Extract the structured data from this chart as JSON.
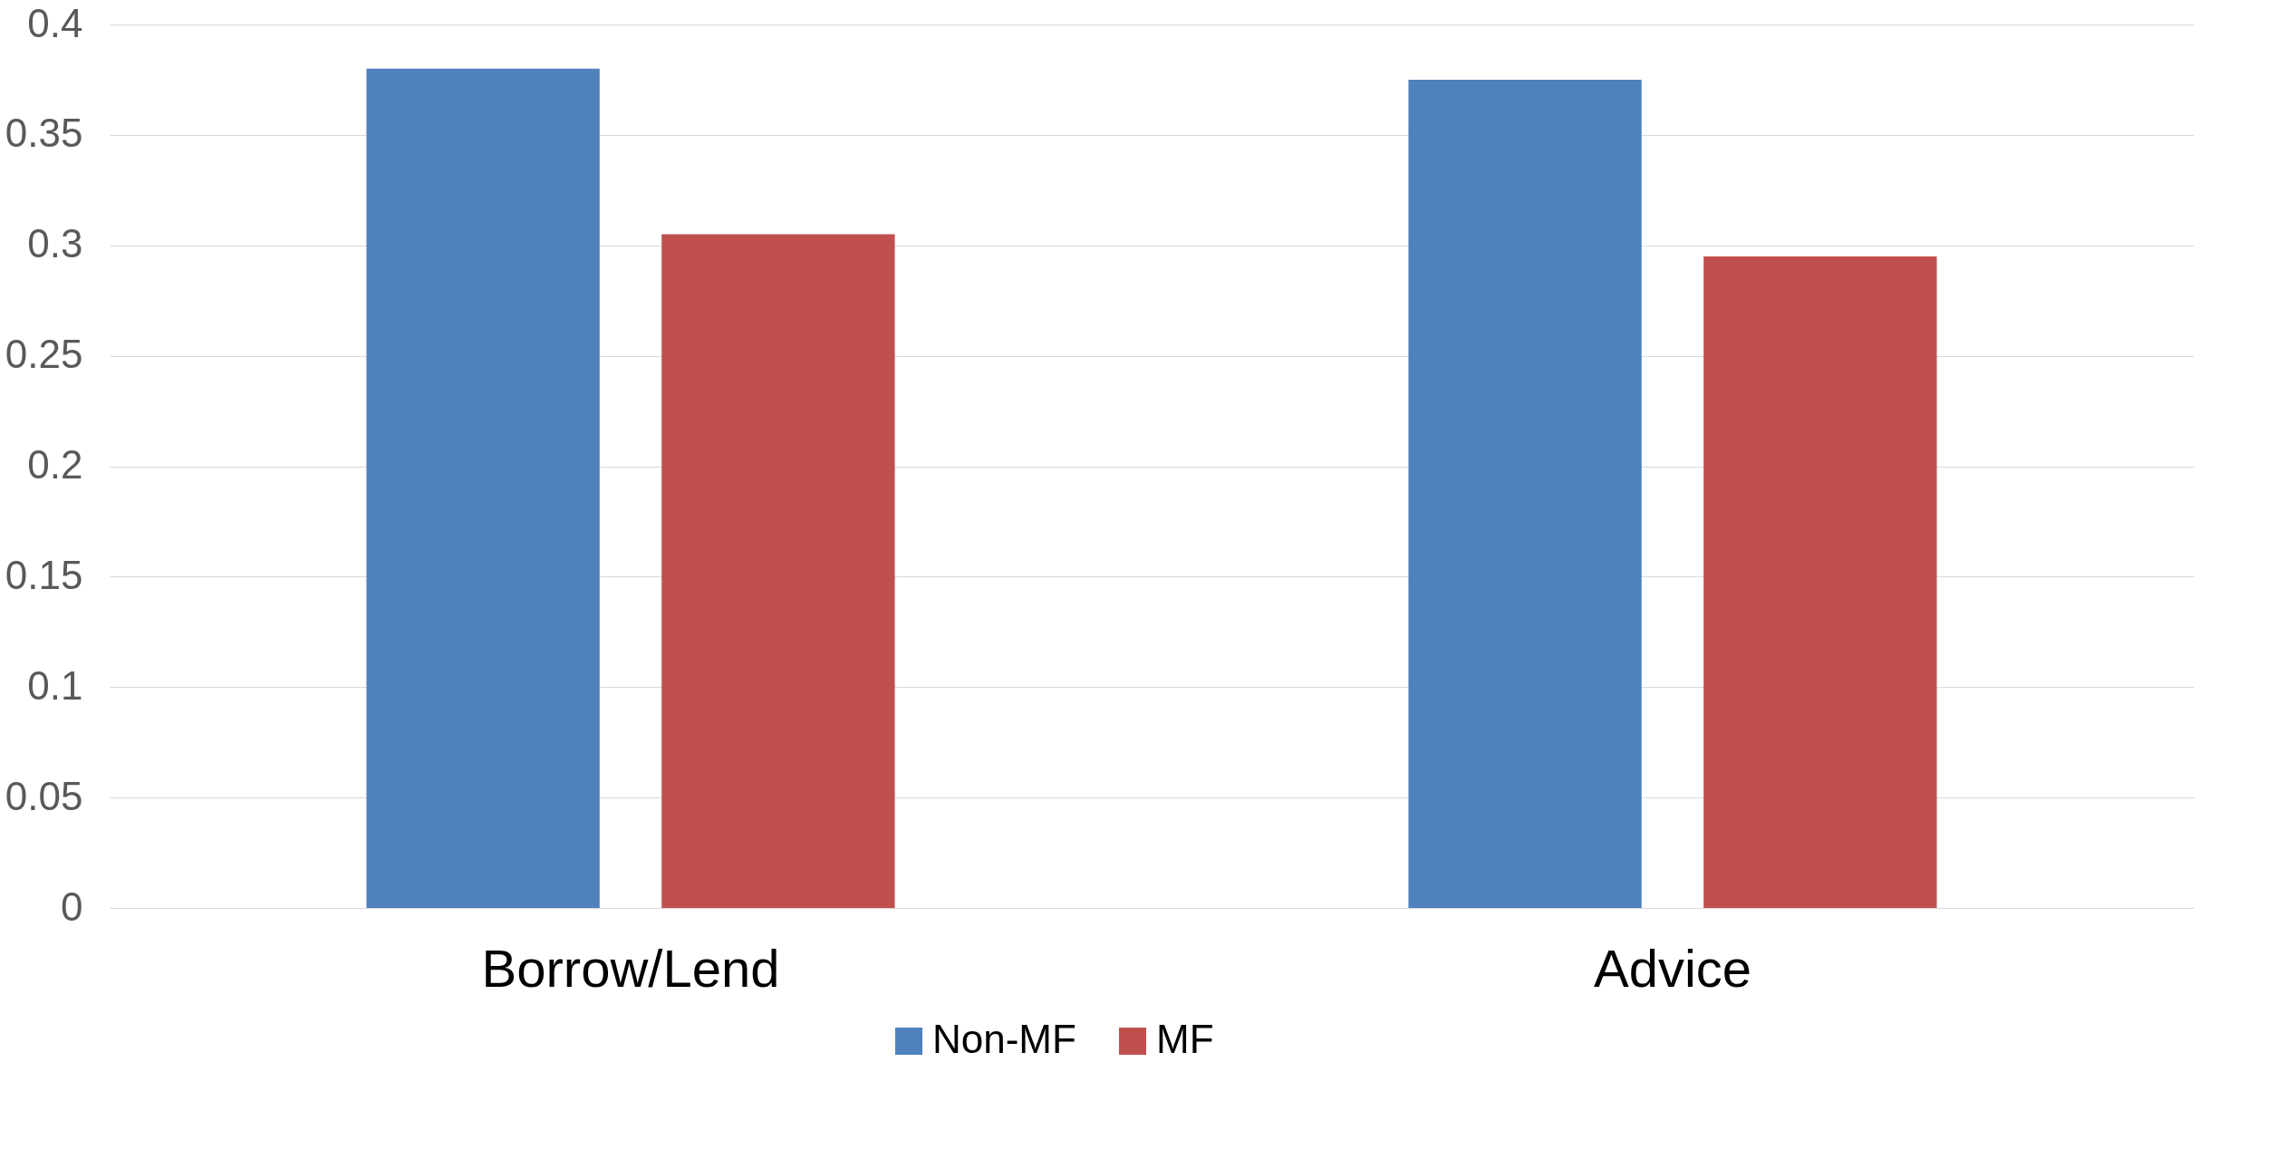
{
  "chart_data": {
    "type": "bar",
    "categories": [
      "Borrow/Lend",
      "Advice"
    ],
    "series": [
      {
        "name": "Non-MF",
        "color": "#4f81bd",
        "values": [
          0.38,
          0.375
        ]
      },
      {
        "name": "MF",
        "color": "#c0504d",
        "values": [
          0.305,
          0.295
        ]
      }
    ],
    "ylim": [
      0,
      0.4
    ],
    "yticks": [
      0,
      0.05,
      0.1,
      0.15,
      0.2,
      0.25,
      0.3,
      0.35,
      0.4
    ],
    "grid": "y",
    "legend": "bottom"
  }
}
